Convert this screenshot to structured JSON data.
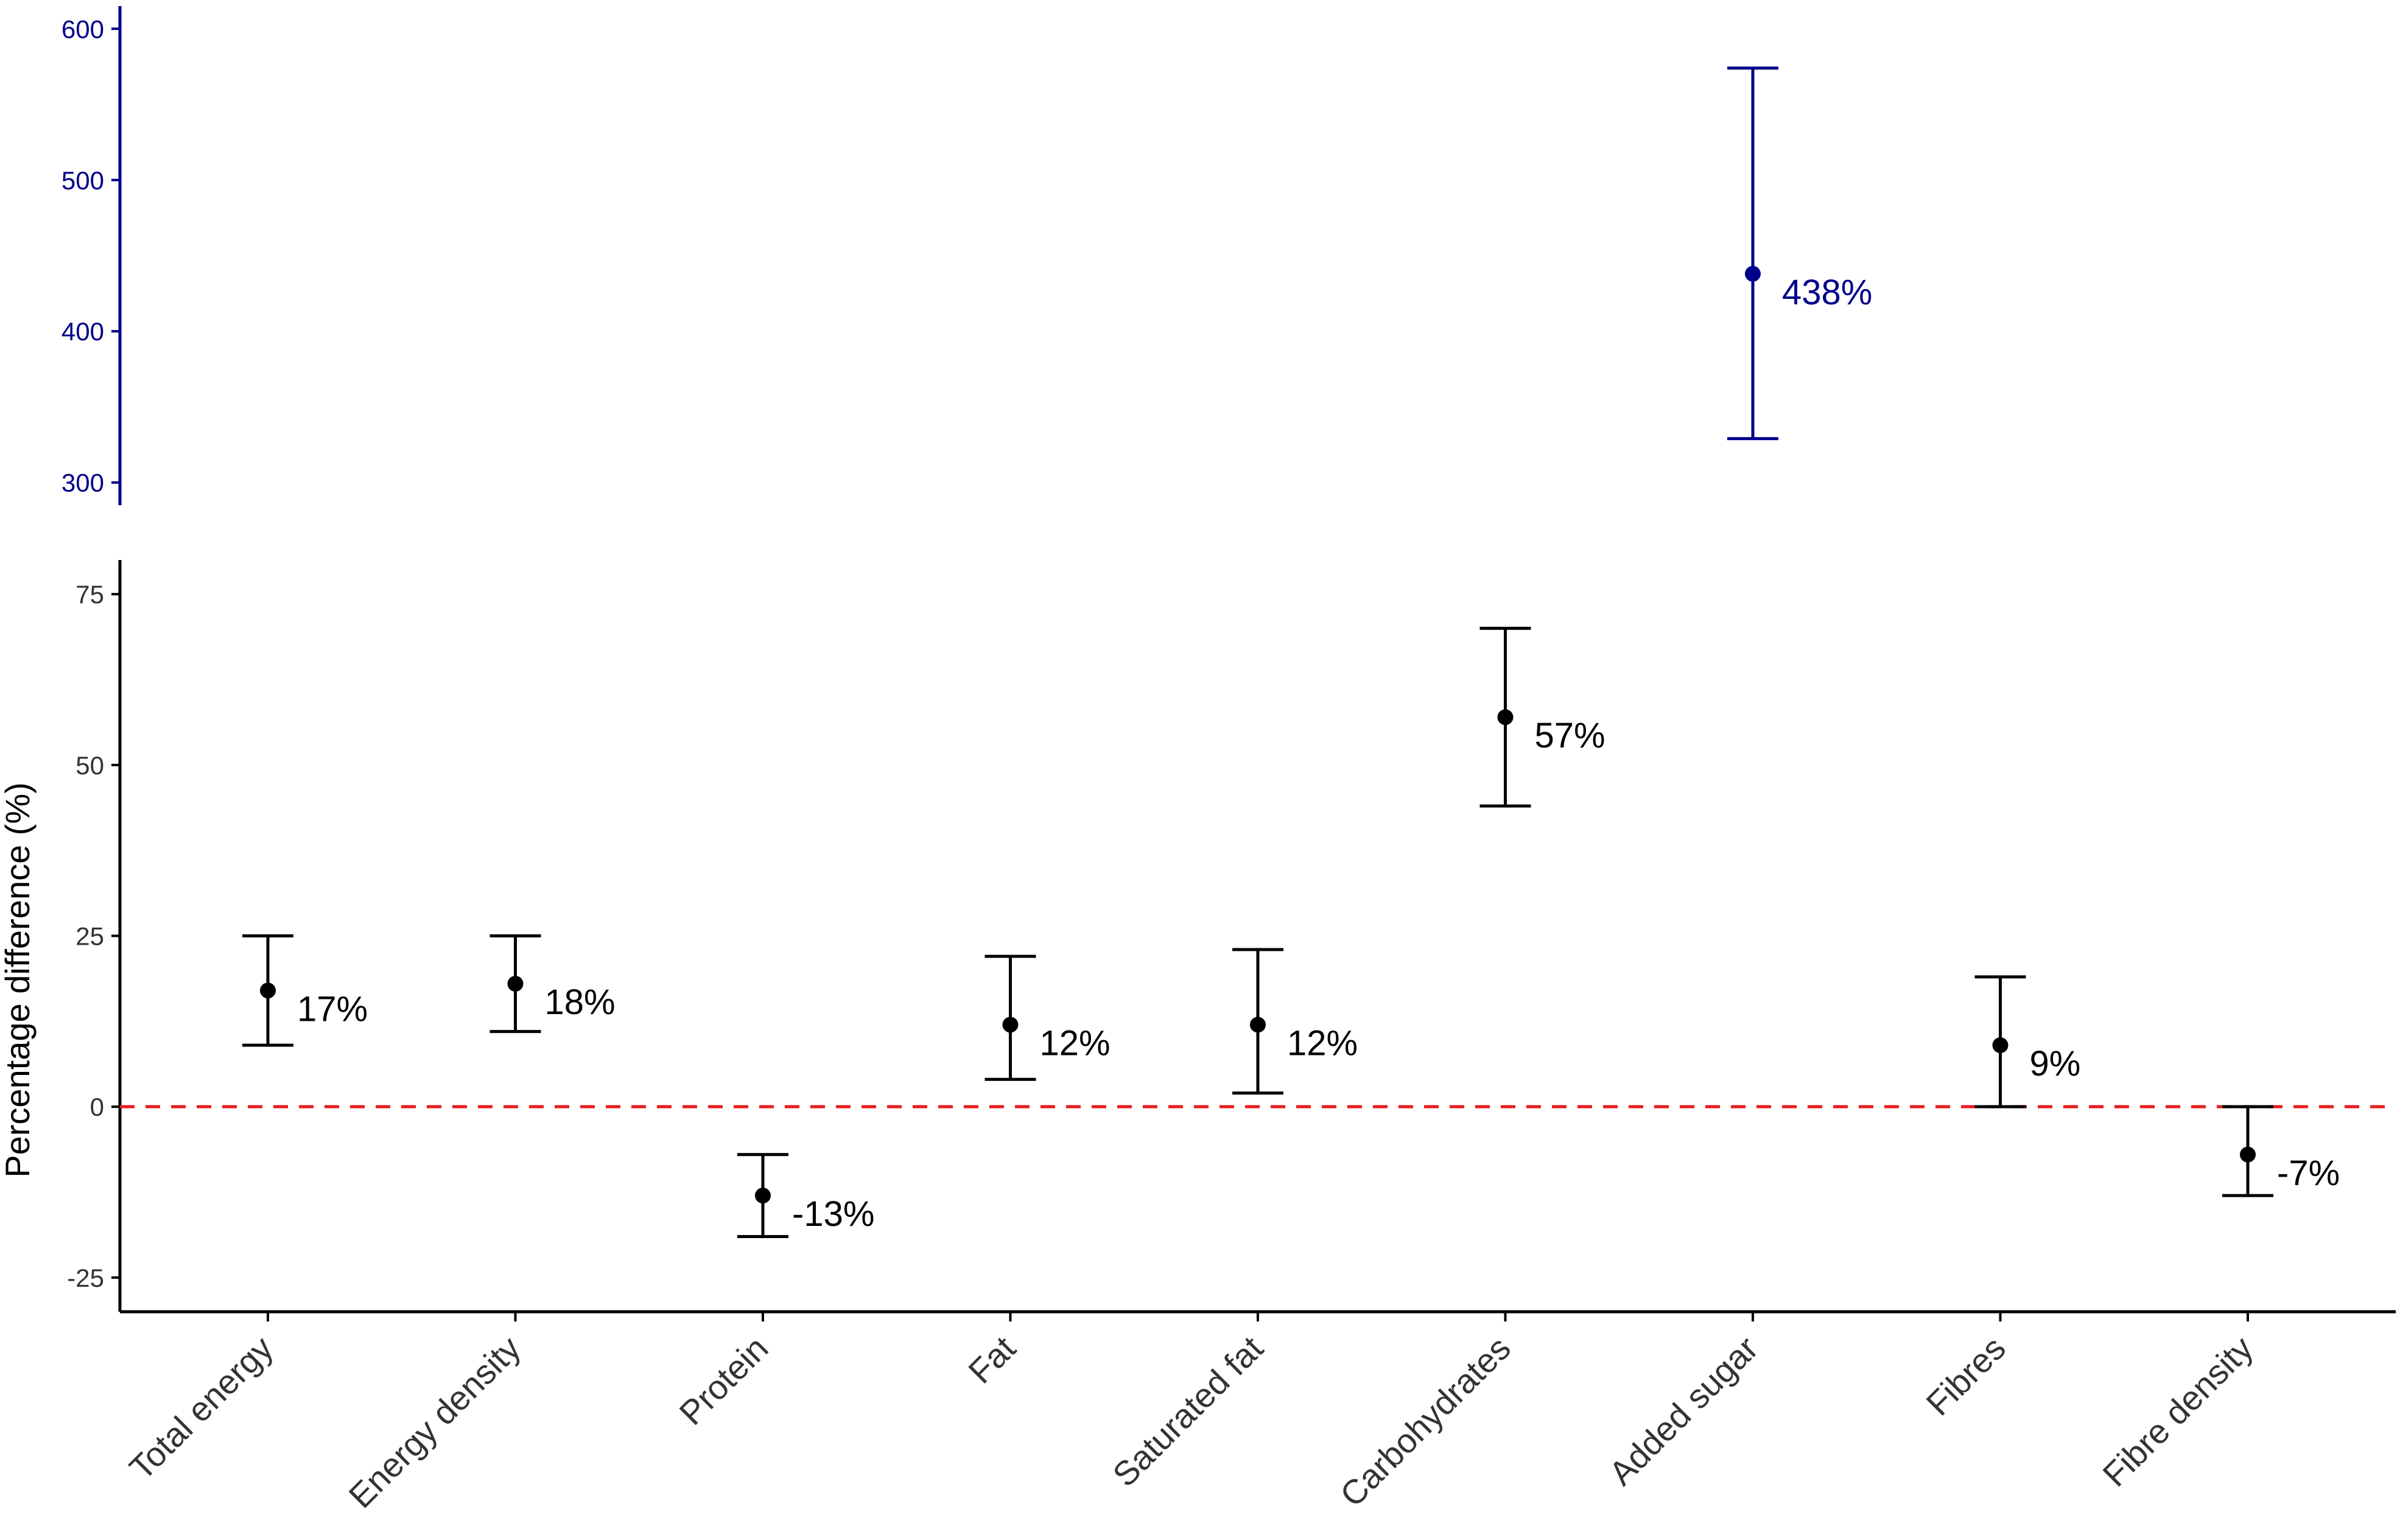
{
  "chart_data": {
    "type": "errorbar",
    "ylabel": "Percentage difference (%)",
    "categories": [
      "Total energy",
      "Energy density",
      "Protein",
      "Fat",
      "Saturated fat",
      "Carbohydrates",
      "Added sugar",
      "Fibres",
      "Fibre density"
    ],
    "points": [
      {
        "category": "Total energy",
        "estimate": 17,
        "lower": 9,
        "upper": 25,
        "label": "17%",
        "panel": "lower"
      },
      {
        "category": "Energy density",
        "estimate": 18,
        "lower": 11,
        "upper": 25,
        "label": "18%",
        "panel": "lower"
      },
      {
        "category": "Protein",
        "estimate": -13,
        "lower": -19,
        "upper": -7,
        "label": "-13%",
        "panel": "lower"
      },
      {
        "category": "Fat",
        "estimate": 12,
        "lower": 4,
        "upper": 22,
        "label": "12%",
        "panel": "lower"
      },
      {
        "category": "Saturated fat",
        "estimate": 12,
        "lower": 2,
        "upper": 23,
        "label": "12%",
        "panel": "lower"
      },
      {
        "category": "Carbohydrates",
        "estimate": 57,
        "lower": 44,
        "upper": 70,
        "label": "57%",
        "panel": "lower"
      },
      {
        "category": "Added sugar",
        "estimate": 438,
        "lower": 329,
        "upper": 574,
        "label": "438%",
        "panel": "upper"
      },
      {
        "category": "Fibres",
        "estimate": 9,
        "lower": 0,
        "upper": 19,
        "label": "9%",
        "panel": "lower"
      },
      {
        "category": "Fibre density",
        "estimate": -7,
        "lower": -13,
        "upper": 0,
        "label": "-7%",
        "panel": "lower"
      }
    ],
    "upper_panel": {
      "ylim": [
        285,
        615
      ],
      "ticks": [
        "300",
        "400",
        "500",
        "600"
      ],
      "color": "#00008b"
    },
    "lower_panel": {
      "ylim": [
        -30,
        80
      ],
      "ticks": [
        "-25",
        "0",
        "25",
        "50",
        "75"
      ],
      "color": "#000000"
    },
    "reference_line": {
      "y": 0,
      "style": "dashed",
      "color": "#e8191a"
    },
    "grid": false
  }
}
